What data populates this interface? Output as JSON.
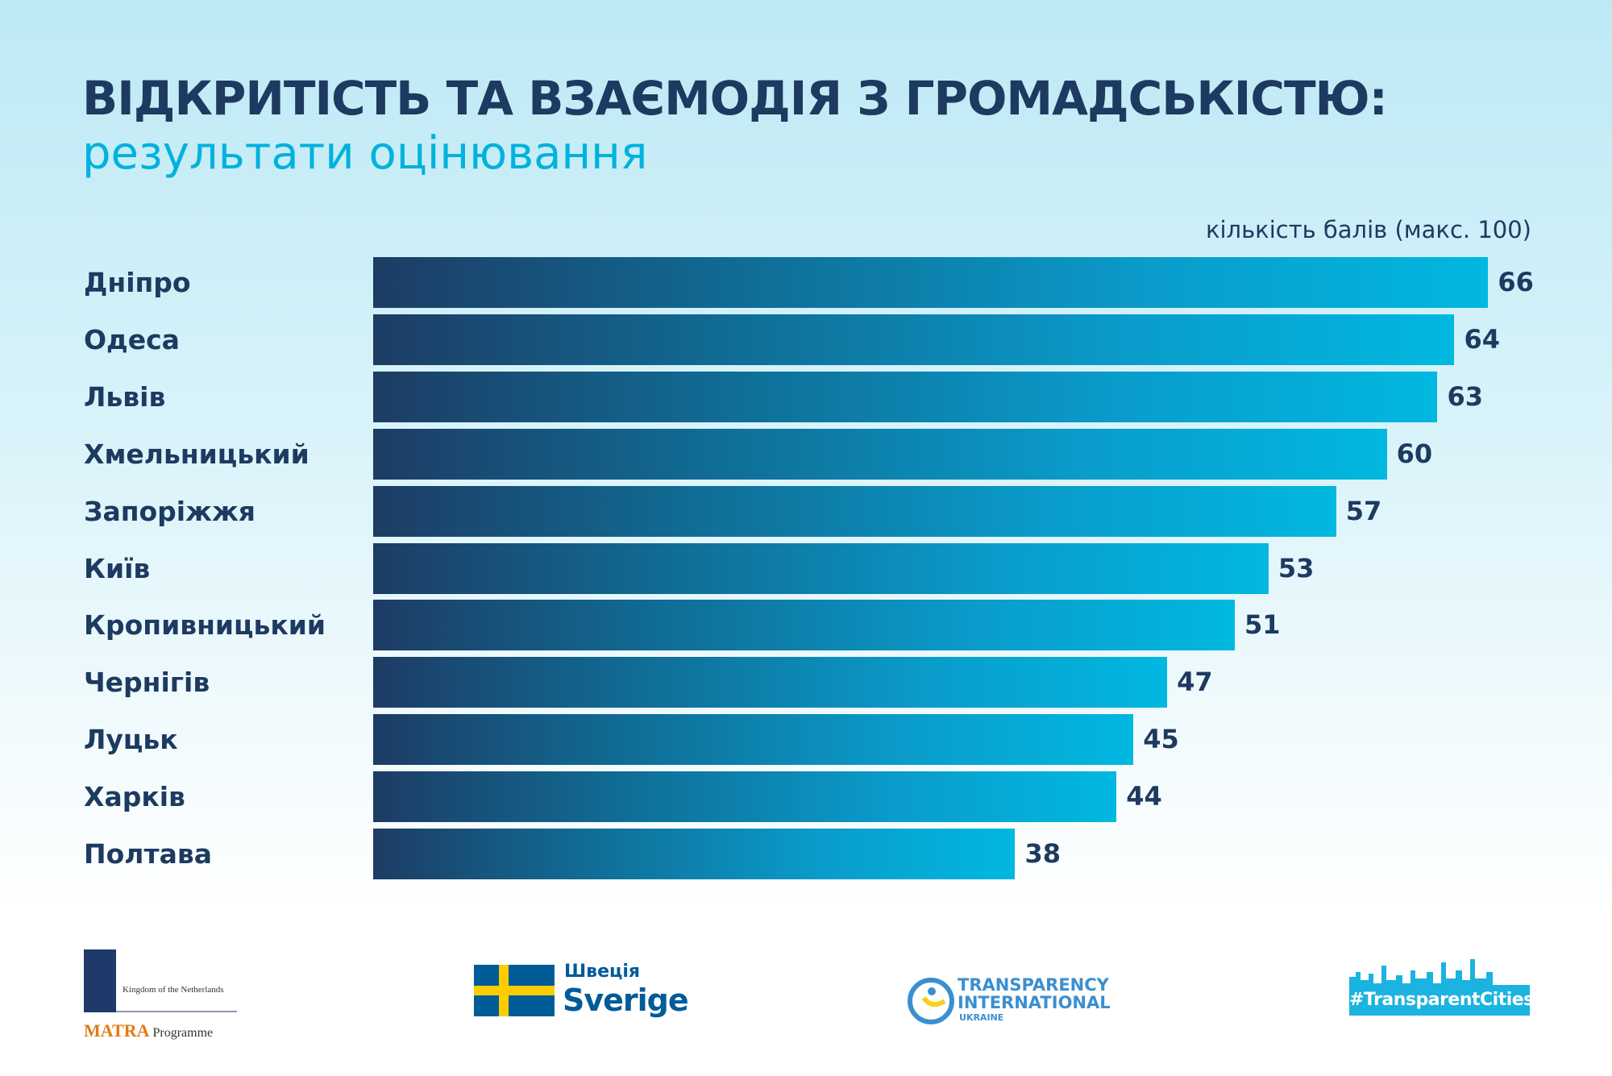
{
  "chart_data": {
    "type": "bar",
    "orientation": "horizontal",
    "title": "ВІДКРИТІСТЬ ТА ВЗАЄМОДІЯ З ГРОМАДСЬКІСТЮ:",
    "subtitle": "результати оцінювання",
    "xlabel": "кількість балів (макс. 100)",
    "categories": [
      "Дніпро",
      "Одеса",
      "Львів",
      "Хмельницький",
      "Запоріжжя",
      "Київ",
      "Кропивницький",
      "Чернігів",
      "Луцьк",
      "Харків",
      "Полтава"
    ],
    "values": [
      66,
      64,
      63,
      60,
      57,
      53,
      51,
      47,
      45,
      44,
      38
    ],
    "xlim": [
      0,
      100
    ],
    "grid": false,
    "colors": {
      "bar_start": "#1d3c64",
      "bar_end": "#00b8e0",
      "title": "#1d3a60",
      "subtitle": "#00b2dc"
    }
  },
  "logos": {
    "netherlands": {
      "line1": "Kingdom of the Netherlands",
      "brand": "MATRA",
      "suffix": "Programme"
    },
    "sweden": {
      "line1": "Швеція",
      "line2": "Sverige"
    },
    "ti": {
      "line1": "TRANSPARENCY",
      "line2": "INTERNATIONAL",
      "line3": "UKRAINE"
    },
    "cities": {
      "tag": "#TransparentCities"
    }
  }
}
